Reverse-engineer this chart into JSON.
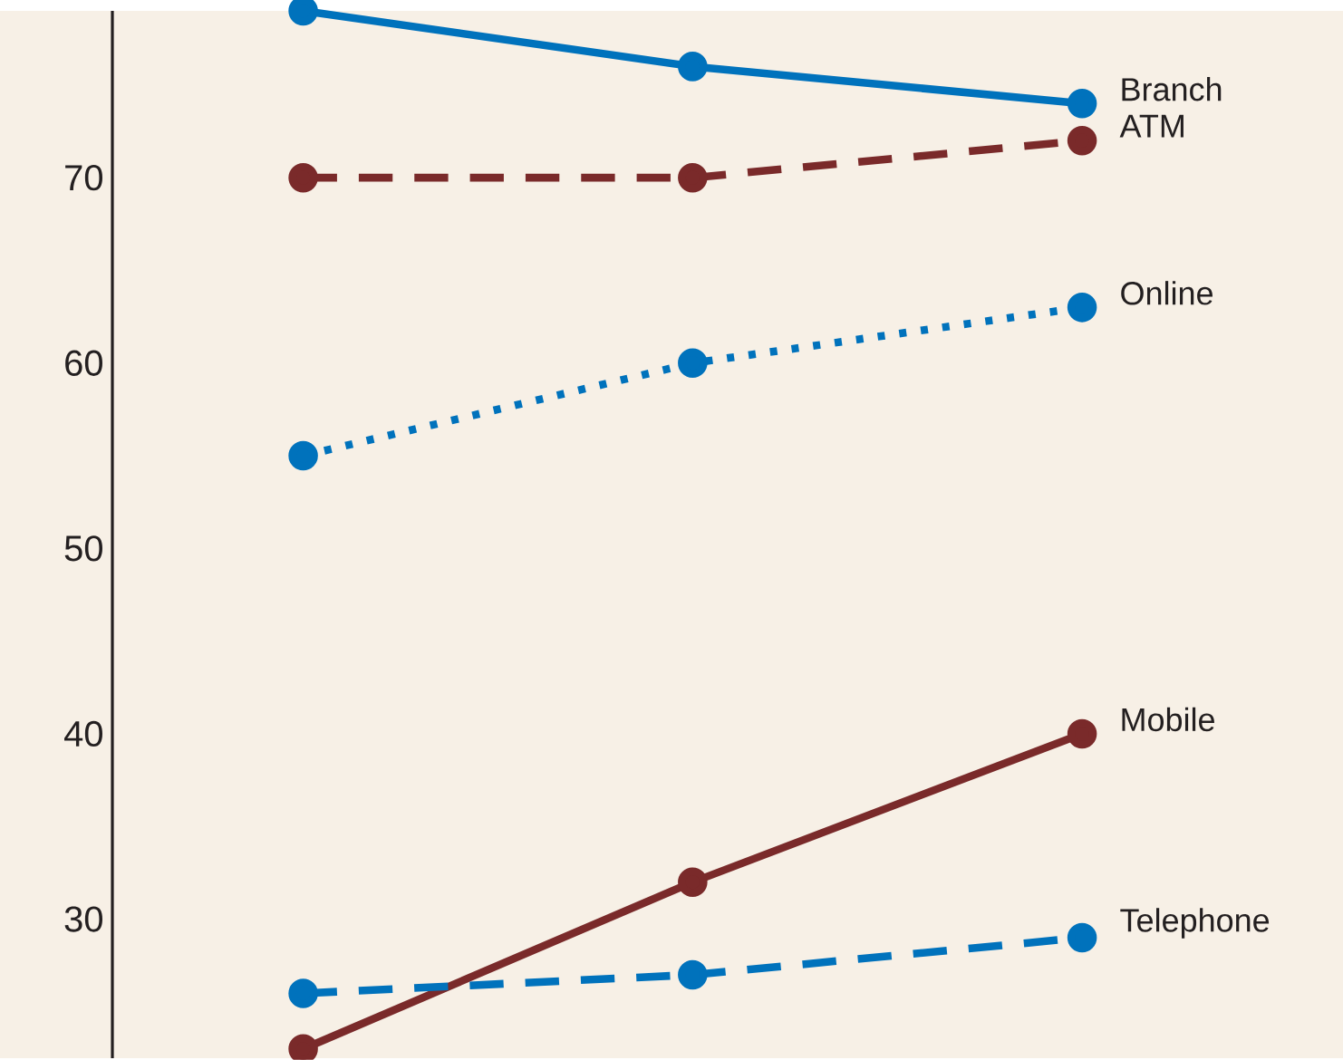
{
  "chart_data": {
    "type": "line",
    "categories": [
      null,
      null,
      null
    ],
    "series": [
      {
        "name": "Branch",
        "color": "#0072bc",
        "line_style": "solid",
        "values": [
          79,
          76,
          74
        ]
      },
      {
        "name": "ATM",
        "color": "#7a2a2a",
        "line_style": "dashed",
        "values": [
          70,
          70,
          72
        ]
      },
      {
        "name": "Online",
        "color": "#0072bc",
        "line_style": "dotted",
        "values": [
          55,
          60,
          63
        ]
      },
      {
        "name": "Mobile",
        "color": "#7a2a2a",
        "line_style": "solid",
        "values": [
          23,
          32,
          40
        ]
      },
      {
        "name": "Telephone",
        "color": "#0072bc",
        "line_style": "dashed",
        "values": [
          26,
          27,
          29
        ]
      }
    ],
    "ylim": [
      22.5,
      79
    ],
    "yticks": [
      30,
      40,
      50,
      60,
      70
    ],
    "marker": "circle",
    "grid": false,
    "legend": false,
    "tick_labels": "y"
  }
}
